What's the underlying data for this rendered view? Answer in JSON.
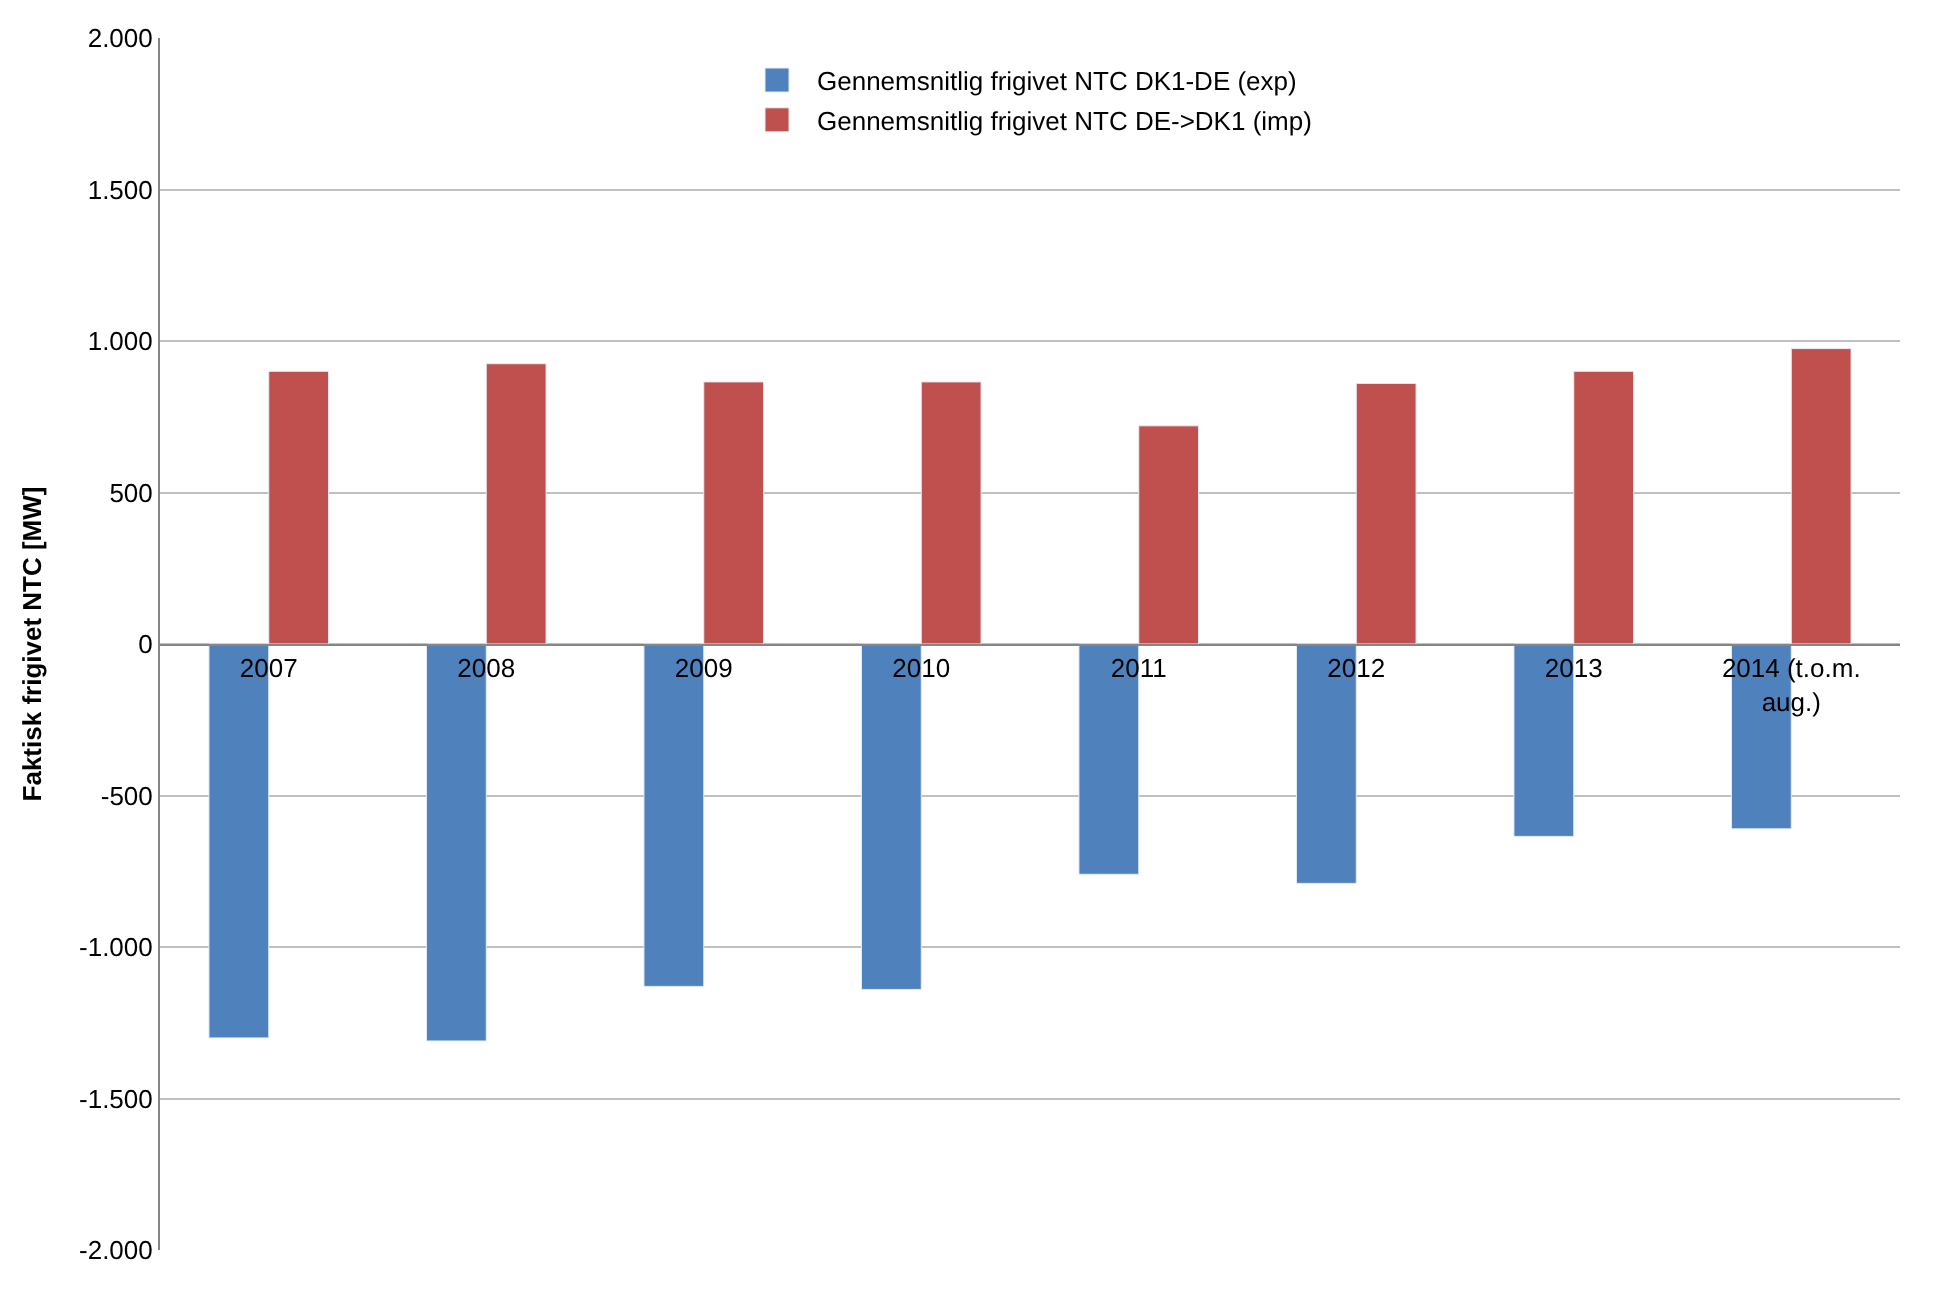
{
  "chart_data": {
    "type": "bar",
    "ylabel": "Faktisk frigivet NTC [MW]",
    "categories": [
      "2007",
      "2008",
      "2009",
      "2010",
      "2011",
      "2012",
      "2013",
      "2014 (t.o.m. aug.)"
    ],
    "series": [
      {
        "name": "Gennemsnitlig frigivet NTC DK1-DE (exp)",
        "color": "#4f81bd",
        "values": [
          -1300,
          -1310,
          -1130,
          -1140,
          -760,
          -790,
          -635,
          -610
        ]
      },
      {
        "name": "Gennemsnitlig frigivet NTC DE->DK1 (imp)",
        "color": "#c0504d",
        "values": [
          900,
          925,
          865,
          865,
          720,
          860,
          900,
          975
        ]
      }
    ],
    "ylim": [
      -2000,
      2000
    ],
    "yticks": [
      {
        "value": -2000,
        "label": "-2.000"
      },
      {
        "value": -1500,
        "label": "-1.500"
      },
      {
        "value": -1000,
        "label": "-1.000"
      },
      {
        "value": -500,
        "label": "-500"
      },
      {
        "value": 0,
        "label": "0"
      },
      {
        "value": 500,
        "label": "500"
      },
      {
        "value": 1000,
        "label": "1.000"
      },
      {
        "value": 1500,
        "label": "1.500"
      },
      {
        "value": 2000,
        "label": "2.000"
      }
    ],
    "grid": "y",
    "legend": "top"
  }
}
